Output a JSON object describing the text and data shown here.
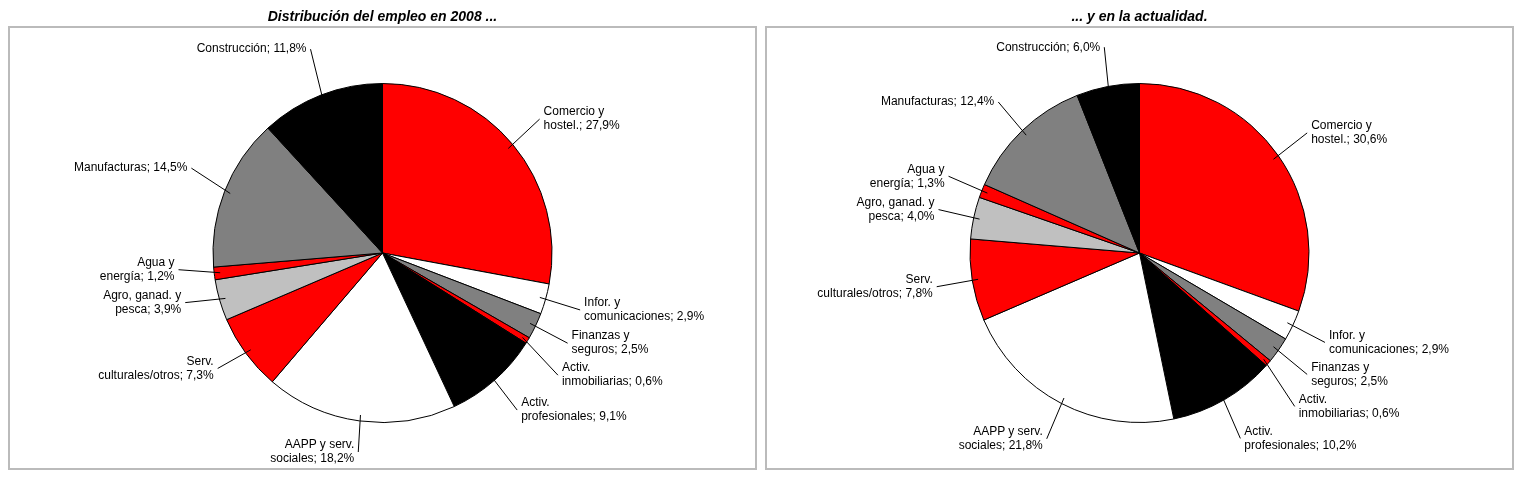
{
  "chart_data": [
    {
      "type": "pie",
      "title": "Distribución del empleo en 2008 ...",
      "categories": [
        "Comercio y hostel.",
        "Infor. y comunicaciones",
        "Finanzas y seguros",
        "Activ. inmobiliarias",
        "Activ. profesionales",
        "AAPP y serv. sociales",
        "Serv. culturales/otros",
        "Agro, ganad. y pesca",
        "Agua y energía",
        "Manufacturas",
        "Construcción"
      ],
      "values": [
        27.9,
        2.9,
        2.5,
        0.6,
        9.1,
        18.2,
        7.3,
        3.9,
        1.2,
        14.5,
        11.8
      ],
      "value_labels": [
        "27,9%",
        "2,9%",
        "2,5%",
        "0,6%",
        "9,1%",
        "18,2%",
        "7,3%",
        "3,9%",
        "1,2%",
        "14,5%",
        "11,8%"
      ],
      "colors": [
        "#ff0000",
        "#ffffff",
        "#808080",
        "#ff0000",
        "#000000",
        "#ffffff",
        "#ff0000",
        "#c0c0c0",
        "#ff0000",
        "#808080",
        "#000000"
      ],
      "legend": false
    },
    {
      "type": "pie",
      "title": "... y en la actualidad.",
      "categories": [
        "Comercio y hostel.",
        "Infor. y comunicaciones",
        "Finanzas y seguros",
        "Activ. inmobiliarias",
        "Activ. profesionales",
        "AAPP y serv. sociales",
        "Serv. culturales/otros",
        "Agro, ganad. y pesca",
        "Agua y energía",
        "Manufacturas",
        "Construcción"
      ],
      "values": [
        30.6,
        2.9,
        2.5,
        0.6,
        10.2,
        21.8,
        7.8,
        4.0,
        1.3,
        12.4,
        6.0
      ],
      "value_labels": [
        "30,6%",
        "2,9%",
        "2,5%",
        "0,6%",
        "10,2%",
        "21,8%",
        "7,8%",
        "4,0%",
        "1,3%",
        "12,4%",
        "6,0%"
      ],
      "colors": [
        "#ff0000",
        "#ffffff",
        "#808080",
        "#ff0000",
        "#000000",
        "#ffffff",
        "#ff0000",
        "#c0c0c0",
        "#ff0000",
        "#808080",
        "#000000"
      ],
      "legend": false
    }
  ]
}
